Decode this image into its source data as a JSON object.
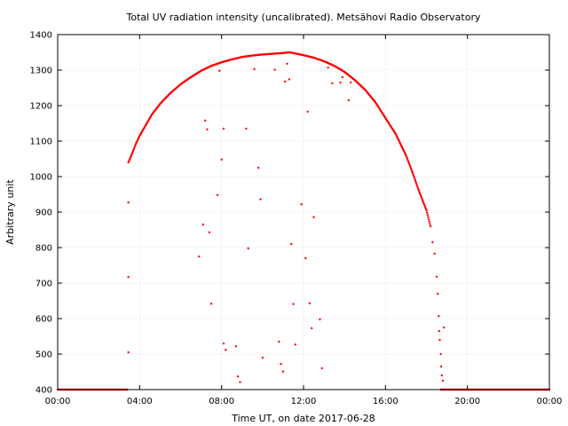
{
  "chart_data": {
    "type": "scatter",
    "title": "Total UV radiation intensity (uncalibrated). Metsähovi Radio Observatory",
    "xlabel": "Time UT, on date 2017-06-28",
    "ylabel": "Arbitrary unit",
    "xlim": [
      "00:00",
      "24:00"
    ],
    "ylim": [
      400,
      1400
    ],
    "x_tick_labels": [
      "00:00",
      "04:00",
      "08:00",
      "12:00",
      "16:00",
      "20:00",
      "00:00"
    ],
    "y_ticks": [
      400,
      500,
      600,
      700,
      800,
      900,
      1000,
      1100,
      1200,
      1300,
      1400
    ],
    "grid": true,
    "legend": "none",
    "marker_color": "#ff0000",
    "series": [
      {
        "values_description_x_unit": "hours UT",
        "baseline": [
          [
            0.0,
            400
          ],
          [
            0.5,
            400
          ],
          [
            1.0,
            400
          ],
          [
            1.5,
            400
          ],
          [
            2.0,
            400
          ],
          [
            2.5,
            400
          ],
          [
            3.0,
            400
          ],
          [
            3.4,
            400
          ],
          [
            18.7,
            400
          ],
          [
            19.0,
            400
          ],
          [
            19.5,
            400
          ],
          [
            20.0,
            400
          ],
          [
            20.5,
            400
          ],
          [
            21.0,
            400
          ],
          [
            21.5,
            400
          ],
          [
            22.0,
            400
          ],
          [
            22.5,
            400
          ],
          [
            23.0,
            400
          ],
          [
            23.5,
            400
          ],
          [
            24.0,
            400
          ]
        ],
        "main_curve": [
          [
            3.45,
            1040
          ],
          [
            3.6,
            1060
          ],
          [
            3.8,
            1090
          ],
          [
            4.0,
            1115
          ],
          [
            4.3,
            1145
          ],
          [
            4.6,
            1175
          ],
          [
            5.0,
            1205
          ],
          [
            5.5,
            1235
          ],
          [
            6.0,
            1260
          ],
          [
            6.5,
            1280
          ],
          [
            7.0,
            1298
          ],
          [
            7.5,
            1312
          ],
          [
            8.0,
            1322
          ],
          [
            8.5,
            1330
          ],
          [
            9.0,
            1337
          ],
          [
            9.5,
            1341
          ],
          [
            10.0,
            1344
          ],
          [
            10.5,
            1346
          ],
          [
            11.0,
            1348
          ],
          [
            11.3,
            1350
          ],
          [
            11.5,
            1348
          ],
          [
            12.0,
            1342
          ],
          [
            12.5,
            1335
          ],
          [
            13.0,
            1325
          ],
          [
            13.5,
            1312
          ],
          [
            14.0,
            1295
          ],
          [
            14.5,
            1272
          ],
          [
            15.0,
            1245
          ],
          [
            15.5,
            1210
          ],
          [
            16.0,
            1165
          ],
          [
            16.5,
            1120
          ],
          [
            17.0,
            1060
          ],
          [
            17.3,
            1015
          ],
          [
            17.6,
            965
          ],
          [
            17.8,
            935
          ],
          [
            18.0,
            905
          ],
          [
            18.2,
            860
          ]
        ],
        "outliers": [
          [
            3.45,
            927
          ],
          [
            3.45,
            717
          ],
          [
            3.45,
            505
          ],
          [
            6.9,
            775
          ],
          [
            7.1,
            865
          ],
          [
            7.2,
            1158
          ],
          [
            7.3,
            1133
          ],
          [
            7.4,
            843
          ],
          [
            7.5,
            642
          ],
          [
            7.8,
            948
          ],
          [
            7.9,
            1298
          ],
          [
            8.0,
            1048
          ],
          [
            8.1,
            1135
          ],
          [
            8.1,
            530
          ],
          [
            8.2,
            512
          ],
          [
            8.7,
            522
          ],
          [
            8.8,
            437
          ],
          [
            8.9,
            421
          ],
          [
            9.2,
            1135
          ],
          [
            9.3,
            798
          ],
          [
            9.6,
            1303
          ],
          [
            9.8,
            1025
          ],
          [
            9.9,
            936
          ],
          [
            10.0,
            490
          ],
          [
            10.6,
            1301
          ],
          [
            10.8,
            535
          ],
          [
            10.9,
            472
          ],
          [
            11.0,
            451
          ],
          [
            11.1,
            1268
          ],
          [
            11.2,
            1318
          ],
          [
            11.3,
            1274
          ],
          [
            11.4,
            810
          ],
          [
            11.5,
            641
          ],
          [
            11.6,
            527
          ],
          [
            11.9,
            922
          ],
          [
            12.1,
            770
          ],
          [
            12.2,
            1183
          ],
          [
            12.3,
            643
          ],
          [
            12.4,
            573
          ],
          [
            12.5,
            886
          ],
          [
            12.8,
            598
          ],
          [
            12.9,
            460
          ],
          [
            13.2,
            1307
          ],
          [
            13.4,
            1263
          ],
          [
            13.8,
            1265
          ],
          [
            13.9,
            1280
          ],
          [
            14.2,
            1215
          ],
          [
            14.3,
            1265
          ],
          [
            18.3,
            815
          ],
          [
            18.4,
            783
          ],
          [
            18.5,
            718
          ],
          [
            18.55,
            670
          ],
          [
            18.6,
            607
          ],
          [
            18.62,
            565
          ],
          [
            18.65,
            540
          ],
          [
            18.7,
            500
          ],
          [
            18.72,
            465
          ],
          [
            18.75,
            440
          ],
          [
            18.8,
            425
          ],
          [
            18.85,
            575
          ]
        ]
      }
    ]
  }
}
